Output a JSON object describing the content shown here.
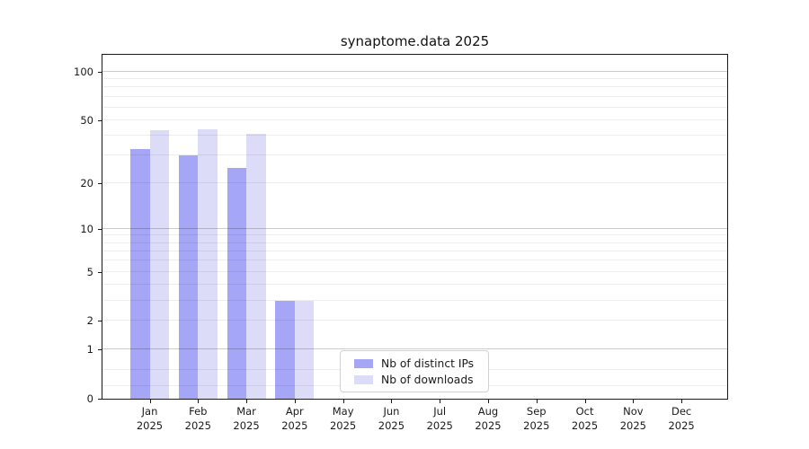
{
  "title": "synaptome.data 2025",
  "chart_data": {
    "type": "bar",
    "categories": [
      "Jan",
      "Feb",
      "Mar",
      "Apr",
      "May",
      "Jun",
      "Jul",
      "Aug",
      "Sep",
      "Oct",
      "Nov",
      "Dec"
    ],
    "year_label": "2025",
    "series": [
      {
        "key": "distinct-ips",
        "name": "Nb of distinct IPs",
        "color": "#a6a6f6",
        "values": [
          33,
          30,
          25,
          3,
          null,
          null,
          null,
          null,
          null,
          null,
          null,
          null
        ]
      },
      {
        "key": "downloads",
        "name": "Nb of downloads",
        "color": "#dcdcf9",
        "values": [
          43,
          44,
          41,
          3,
          null,
          null,
          null,
          null,
          null,
          null,
          null,
          null
        ]
      }
    ],
    "y_axis": {
      "scale": "log10(value+1)",
      "top_value": 127,
      "ticks": [
        100,
        50,
        20,
        10,
        5,
        2,
        1,
        0
      ],
      "gridlines_emphasized": [
        100,
        10,
        1
      ],
      "gridlines_light": [
        90,
        80,
        70,
        60,
        50,
        40,
        30,
        20,
        9,
        8,
        7,
        6,
        5,
        4,
        3,
        2,
        0.5,
        0.2
      ]
    },
    "legend_position": "bottom-center",
    "grid": "on"
  },
  "colors": {
    "background": "#ffffff",
    "bar_distinct_ips": "#a6a6f6",
    "bar_downloads": "#dcdcf9",
    "axis": "#1a1a1a",
    "grid_major": "#c8c8c8",
    "grid_minor": "#ececec",
    "legend_border": "#d2d2d2"
  }
}
